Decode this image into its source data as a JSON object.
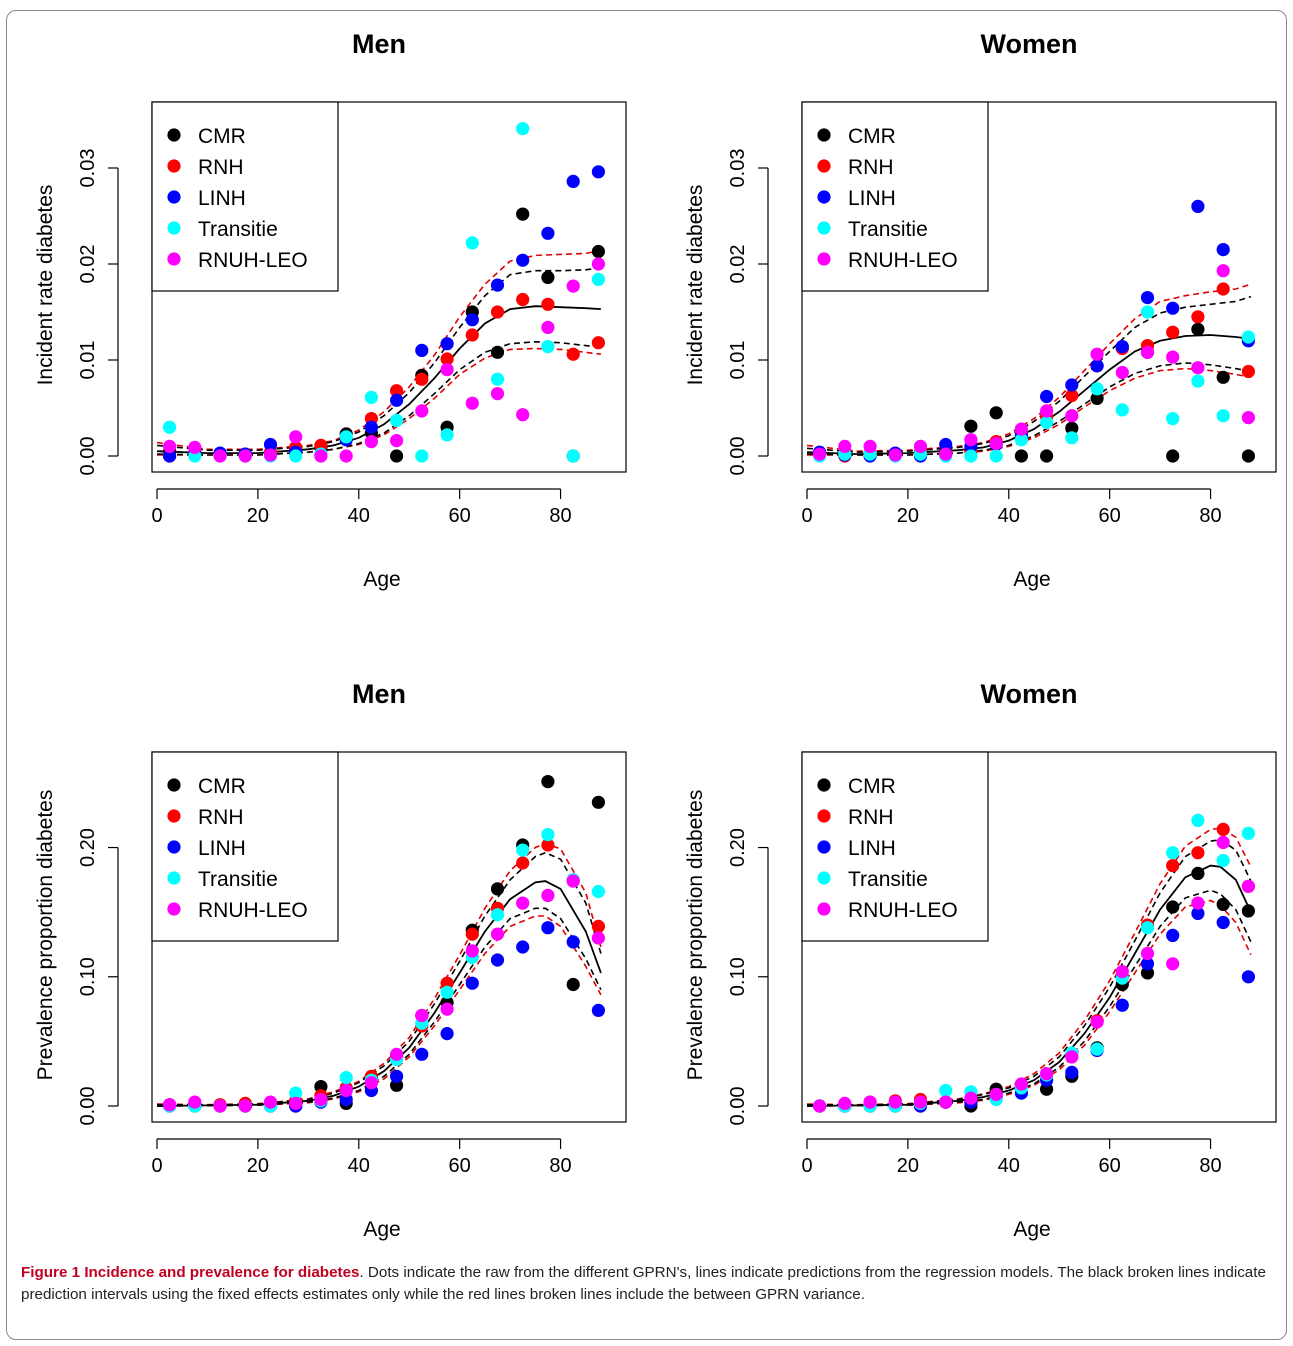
{
  "series_styles": [
    {
      "name": "CMR",
      "color": "#000000"
    },
    {
      "name": "RNH",
      "color": "#ff0000"
    },
    {
      "name": "LINH",
      "color": "#0000ff"
    },
    {
      "name": "Transitie",
      "color": "#00ffff"
    },
    {
      "name": "RNUH-LEO",
      "color": "#ff00ff"
    }
  ],
  "chart_data": [
    {
      "type": "scatter",
      "title": "Men",
      "xlabel": "Age",
      "ylabel": "Incident rate diabetes",
      "xlim": [
        0,
        90
      ],
      "ylim": [
        0,
        0.035
      ],
      "xticks": [
        "0",
        "20",
        "40",
        "60",
        "80"
      ],
      "yticks": [
        "0.00",
        "0.01",
        "0.02",
        "0.03"
      ],
      "legend_position": "top-left",
      "x": [
        2.5,
        7.5,
        12.5,
        17.5,
        22.5,
        27.5,
        32.5,
        37.5,
        42.5,
        47.5,
        52.5,
        57.5,
        62.5,
        67.5,
        72.5,
        77.5,
        82.5,
        87.5
      ],
      "series": [
        {
          "name": "CMR",
          "values": [
            0.0005,
            0.0003,
            0.0002,
            0.0001,
            0.0003,
            0.0006,
            0.0009,
            0.0023,
            0.0024,
            0.0,
            0.0084,
            0.003,
            0.015,
            0.0108,
            0.0252,
            0.0186,
            0.0,
            0.0213
          ]
        },
        {
          "name": "RNH",
          "values": [
            0.0,
            0.0003,
            0.0002,
            0.0002,
            0.0004,
            0.0009,
            0.0011,
            0.0018,
            0.0039,
            0.0068,
            0.008,
            0.0101,
            0.0126,
            0.015,
            0.0163,
            0.0158,
            0.0106,
            0.0118
          ]
        },
        {
          "name": "LINH",
          "values": [
            0.0,
            0.0002,
            0.0003,
            0.0002,
            0.0012,
            0.0004,
            0.0002,
            0.0017,
            0.003,
            0.0058,
            0.011,
            0.0117,
            0.0142,
            0.0178,
            0.0204,
            0.0232,
            0.0286,
            0.0296
          ]
        },
        {
          "name": "Transitie",
          "values": [
            0.003,
            0.0,
            0.0,
            0.0,
            0.0,
            0.0,
            0.0002,
            0.002,
            0.0061,
            0.0037,
            0.0,
            0.0022,
            0.0222,
            0.008,
            0.0341,
            0.0114,
            0.0,
            0.0184
          ]
        },
        {
          "name": "RNUH-LEO",
          "values": [
            0.001,
            0.0009,
            0.0,
            0.0,
            0.0001,
            0.002,
            0.0,
            0.0,
            0.0015,
            0.0016,
            0.0047,
            0.009,
            0.0055,
            0.0065,
            0.0043,
            0.0134,
            0.0177,
            0.02
          ]
        }
      ],
      "prediction": {
        "x": [
          0,
          10,
          20,
          30,
          35,
          40,
          45,
          50,
          55,
          60,
          65,
          70,
          75,
          80,
          85,
          88
        ],
        "fit": [
          0.0005,
          0.0003,
          0.0003,
          0.0007,
          0.0011,
          0.0019,
          0.0033,
          0.0054,
          0.0081,
          0.0112,
          0.0138,
          0.0153,
          0.0156,
          0.0155,
          0.0154,
          0.0153
        ],
        "fixed_lower": [
          0.0002,
          0.0001,
          0.0001,
          0.0004,
          0.0007,
          0.0013,
          0.0024,
          0.0042,
          0.0065,
          0.009,
          0.0108,
          0.0117,
          0.0119,
          0.0118,
          0.0115,
          0.0113
        ],
        "fixed_upper": [
          0.0011,
          0.0006,
          0.0006,
          0.001,
          0.0015,
          0.0025,
          0.0042,
          0.0066,
          0.0097,
          0.0134,
          0.0167,
          0.0189,
          0.0193,
          0.0193,
          0.0194,
          0.0196
        ],
        "between_lower": [
          0.0001,
          0.0001,
          0.0001,
          0.0004,
          0.0007,
          0.0012,
          0.0022,
          0.0039,
          0.006,
          0.0085,
          0.0102,
          0.0111,
          0.0112,
          0.0111,
          0.0108,
          0.0106
        ],
        "between_upper": [
          0.0014,
          0.0007,
          0.0007,
          0.0011,
          0.0016,
          0.0027,
          0.0046,
          0.0072,
          0.0105,
          0.0145,
          0.0179,
          0.0203,
          0.0209,
          0.021,
          0.0211,
          0.0214
        ]
      }
    },
    {
      "type": "scatter",
      "title": "Women",
      "xlabel": "Age",
      "ylabel": "Incident rate diabetes",
      "xlim": [
        0,
        90
      ],
      "ylim": [
        0,
        0.035
      ],
      "xticks": [
        "0",
        "20",
        "40",
        "60",
        "80"
      ],
      "yticks": [
        "0.00",
        "0.01",
        "0.02",
        "0.03"
      ],
      "legend_position": "top-left",
      "x": [
        2.5,
        7.5,
        12.5,
        17.5,
        22.5,
        27.5,
        32.5,
        37.5,
        42.5,
        47.5,
        52.5,
        57.5,
        62.5,
        67.5,
        72.5,
        77.5,
        82.5,
        87.5
      ],
      "series": [
        {
          "name": "CMR",
          "values": [
            0.0002,
            0.0002,
            0.0002,
            0.0002,
            0.0004,
            0.0004,
            0.0031,
            0.0045,
            0.0,
            0.0,
            0.0029,
            0.006,
            0.0113,
            0.0108,
            0.0,
            0.0132,
            0.0082,
            0.0
          ]
        },
        {
          "name": "RNH",
          "values": [
            0.0001,
            0.0,
            0.0003,
            0.0001,
            0.0003,
            0.0002,
            0.0005,
            0.0015,
            0.0024,
            0.0041,
            0.0063,
            0.0094,
            0.0112,
            0.0115,
            0.0129,
            0.0145,
            0.0174,
            0.0088
          ]
        },
        {
          "name": "LINH",
          "values": [
            0.0004,
            0.0001,
            0.0,
            0.0003,
            0.0,
            0.0012,
            0.001,
            0.0012,
            0.0021,
            0.0062,
            0.0074,
            0.0094,
            0.0114,
            0.0165,
            0.0154,
            0.026,
            0.0215,
            0.012
          ]
        },
        {
          "name": "Transitie",
          "values": [
            0.0,
            0.0002,
            0.0002,
            0.0,
            0.0002,
            0.0,
            0.0,
            0.0,
            0.0017,
            0.0035,
            0.0019,
            0.007,
            0.0048,
            0.015,
            0.0039,
            0.0078,
            0.0042,
            0.0124
          ]
        },
        {
          "name": "RNUH-LEO",
          "values": [
            0.0002,
            0.001,
            0.001,
            0.0001,
            0.001,
            0.0002,
            0.0017,
            0.0013,
            0.0028,
            0.0047,
            0.0042,
            0.0106,
            0.0087,
            0.0108,
            0.0103,
            0.0092,
            0.0193,
            0.004
          ]
        }
      ],
      "prediction": {
        "x": [
          0,
          10,
          20,
          30,
          35,
          40,
          45,
          50,
          55,
          60,
          65,
          70,
          75,
          80,
          85,
          88
        ],
        "fit": [
          0.0004,
          0.0002,
          0.0003,
          0.0006,
          0.0009,
          0.0016,
          0.0028,
          0.0046,
          0.0068,
          0.009,
          0.0109,
          0.012,
          0.0125,
          0.0126,
          0.0124,
          0.0122
        ],
        "fixed_lower": [
          0.0002,
          0.0001,
          0.0001,
          0.0003,
          0.0006,
          0.0011,
          0.0021,
          0.0036,
          0.0054,
          0.0072,
          0.0086,
          0.0094,
          0.0097,
          0.0095,
          0.0091,
          0.0088
        ],
        "fixed_upper": [
          0.0008,
          0.0004,
          0.0005,
          0.0009,
          0.0013,
          0.0021,
          0.0036,
          0.0057,
          0.0083,
          0.0109,
          0.0134,
          0.0149,
          0.0155,
          0.0158,
          0.0161,
          0.0166
        ],
        "between_lower": [
          0.0001,
          0.0001,
          0.0001,
          0.0003,
          0.0005,
          0.001,
          0.0019,
          0.0033,
          0.0051,
          0.0068,
          0.0081,
          0.0089,
          0.0091,
          0.0089,
          0.0085,
          0.0082
        ],
        "between_upper": [
          0.0011,
          0.0005,
          0.0006,
          0.001,
          0.0014,
          0.0023,
          0.0039,
          0.0061,
          0.0089,
          0.0117,
          0.0143,
          0.0161,
          0.0167,
          0.0171,
          0.0174,
          0.0179
        ]
      }
    },
    {
      "type": "scatter",
      "title": "Men",
      "xlabel": "Age",
      "ylabel": "Prevalence proportion diabetes",
      "xlim": [
        0,
        90
      ],
      "ylim": [
        0,
        0.26
      ],
      "xticks": [
        "0",
        "20",
        "40",
        "60",
        "80"
      ],
      "yticks": [
        "0.00",
        "0.10",
        "0.20"
      ],
      "legend_position": "top-left",
      "x": [
        2.5,
        7.5,
        12.5,
        17.5,
        22.5,
        27.5,
        32.5,
        37.5,
        42.5,
        47.5,
        52.5,
        57.5,
        62.5,
        67.5,
        72.5,
        77.5,
        82.5,
        87.5
      ],
      "series": [
        {
          "name": "CMR",
          "values": [
            0.0,
            0.0,
            0.0,
            0.0,
            0.0,
            0.0,
            0.015,
            0.002,
            0.022,
            0.016,
            0.07,
            0.08,
            0.136,
            0.168,
            0.202,
            0.251,
            0.094,
            0.235
          ]
        },
        {
          "name": "RNH",
          "values": [
            0.001,
            0.002,
            0.001,
            0.002,
            0.002,
            0.004,
            0.008,
            0.014,
            0.023,
            0.038,
            0.062,
            0.095,
            0.133,
            0.153,
            0.188,
            0.202,
            0.175,
            0.139
          ]
        },
        {
          "name": "LINH",
          "values": [
            0.0,
            0.001,
            0.0,
            0.0,
            0.0,
            0.0,
            0.003,
            0.005,
            0.012,
            0.023,
            0.04,
            0.056,
            0.095,
            0.113,
            0.123,
            0.138,
            0.127,
            0.074
          ]
        },
        {
          "name": "Transitie",
          "values": [
            0.0,
            0.0,
            0.0,
            0.0,
            0.0,
            0.01,
            0.004,
            0.022,
            0.02,
            0.036,
            0.064,
            0.088,
            0.115,
            0.148,
            0.198,
            0.21,
            0.175,
            0.166
          ]
        },
        {
          "name": "RNUH-LEO",
          "values": [
            0.001,
            0.003,
            0.0,
            0.0,
            0.003,
            0.002,
            0.005,
            0.012,
            0.018,
            0.04,
            0.07,
            0.075,
            0.12,
            0.133,
            0.157,
            0.163,
            0.174,
            0.13
          ]
        }
      ],
      "prediction": {
        "x": [
          0,
          10,
          20,
          30,
          35,
          40,
          45,
          50,
          55,
          60,
          65,
          70,
          75,
          77,
          80,
          85,
          88
        ],
        "fit": [
          0.0,
          0.0005,
          0.001,
          0.004,
          0.008,
          0.015,
          0.027,
          0.045,
          0.072,
          0.103,
          0.135,
          0.16,
          0.173,
          0.174,
          0.168,
          0.135,
          0.103
        ],
        "fixed_lower": [
          0.0,
          0.0003,
          0.0007,
          0.003,
          0.006,
          0.012,
          0.023,
          0.04,
          0.065,
          0.094,
          0.123,
          0.145,
          0.153,
          0.153,
          0.145,
          0.114,
          0.09
        ],
        "fixed_upper": [
          0.001,
          0.0008,
          0.0015,
          0.005,
          0.01,
          0.018,
          0.031,
          0.05,
          0.079,
          0.112,
          0.147,
          0.175,
          0.193,
          0.196,
          0.191,
          0.157,
          0.118
        ],
        "between_lower": [
          0.0,
          0.0002,
          0.0006,
          0.0025,
          0.0055,
          0.011,
          0.021,
          0.038,
          0.062,
          0.09,
          0.118,
          0.139,
          0.147,
          0.147,
          0.139,
          0.108,
          0.086
        ],
        "between_upper": [
          0.0015,
          0.001,
          0.0018,
          0.0055,
          0.011,
          0.019,
          0.033,
          0.053,
          0.083,
          0.117,
          0.153,
          0.182,
          0.2,
          0.203,
          0.199,
          0.165,
          0.123
        ]
      }
    },
    {
      "type": "scatter",
      "title": "Women",
      "xlabel": "Age",
      "ylabel": "Prevalence proportion diabetes",
      "xlim": [
        0,
        90
      ],
      "ylim": [
        0,
        0.26
      ],
      "xticks": [
        "0",
        "20",
        "40",
        "60",
        "80"
      ],
      "yticks": [
        "0.00",
        "0.10",
        "0.20"
      ],
      "legend_position": "top-left",
      "x": [
        2.5,
        7.5,
        12.5,
        17.5,
        22.5,
        27.5,
        32.5,
        37.5,
        42.5,
        47.5,
        52.5,
        57.5,
        62.5,
        67.5,
        72.5,
        77.5,
        82.5,
        87.5
      ],
      "series": [
        {
          "name": "CMR",
          "values": [
            0.0,
            0.0,
            0.0,
            0.0,
            0.0,
            0.003,
            0.0,
            0.013,
            0.016,
            0.013,
            0.023,
            0.045,
            0.094,
            0.103,
            0.154,
            0.18,
            0.156,
            0.151
          ]
        },
        {
          "name": "RNH",
          "values": [
            0.0,
            0.0,
            0.003,
            0.004,
            0.005,
            0.003,
            0.003,
            0.008,
            0.016,
            0.024,
            0.04,
            0.066,
            0.1,
            0.14,
            0.186,
            0.196,
            0.214,
            0.17
          ]
        },
        {
          "name": "LINH",
          "values": [
            0.0,
            0.0,
            0.0,
            0.0,
            0.0,
            0.003,
            0.003,
            0.007,
            0.01,
            0.02,
            0.026,
            0.043,
            0.078,
            0.11,
            0.132,
            0.149,
            0.142,
            0.1
          ]
        },
        {
          "name": "Transitie",
          "values": [
            0.0,
            0.0,
            0.0,
            0.0,
            0.002,
            0.012,
            0.011,
            0.005,
            0.014,
            0.024,
            0.041,
            0.044,
            0.099,
            0.138,
            0.196,
            0.221,
            0.19,
            0.211
          ]
        },
        {
          "name": "RNUH-LEO",
          "values": [
            0.0,
            0.002,
            0.003,
            0.003,
            0.003,
            0.003,
            0.006,
            0.009,
            0.017,
            0.025,
            0.038,
            0.065,
            0.104,
            0.118,
            0.11,
            0.157,
            0.204,
            0.17
          ]
        }
      ],
      "prediction": {
        "x": [
          0,
          10,
          20,
          30,
          35,
          40,
          45,
          50,
          55,
          60,
          65,
          70,
          75,
          80,
          82,
          85,
          88
        ],
        "fit": [
          0.0,
          0.0005,
          0.001,
          0.004,
          0.007,
          0.012,
          0.02,
          0.034,
          0.056,
          0.084,
          0.118,
          0.152,
          0.177,
          0.186,
          0.185,
          0.175,
          0.15
        ],
        "fixed_lower": [
          0.0,
          0.0003,
          0.0007,
          0.003,
          0.005,
          0.01,
          0.017,
          0.03,
          0.05,
          0.077,
          0.108,
          0.139,
          0.161,
          0.167,
          0.164,
          0.152,
          0.127
        ],
        "fixed_upper": [
          0.001,
          0.0008,
          0.0015,
          0.005,
          0.009,
          0.014,
          0.023,
          0.038,
          0.062,
          0.092,
          0.128,
          0.165,
          0.193,
          0.205,
          0.206,
          0.198,
          0.174
        ],
        "between_lower": [
          0.0,
          0.0002,
          0.0006,
          0.0025,
          0.0045,
          0.009,
          0.016,
          0.028,
          0.047,
          0.073,
          0.103,
          0.133,
          0.154,
          0.159,
          0.155,
          0.142,
          0.117
        ],
        "between_upper": [
          0.0015,
          0.001,
          0.0018,
          0.0055,
          0.0095,
          0.015,
          0.025,
          0.041,
          0.066,
          0.097,
          0.134,
          0.172,
          0.201,
          0.214,
          0.215,
          0.208,
          0.185
        ]
      }
    }
  ],
  "caption": {
    "label": "Figure 1",
    "title": "Incidence and prevalence for diabetes",
    "text": ". Dots indicate the raw from the different GPRN's, lines indicate predictions from the regression models. The black broken lines indicate prediction intervals using the fixed effects estimates only while the red lines broken lines include the between GPRN variance."
  }
}
